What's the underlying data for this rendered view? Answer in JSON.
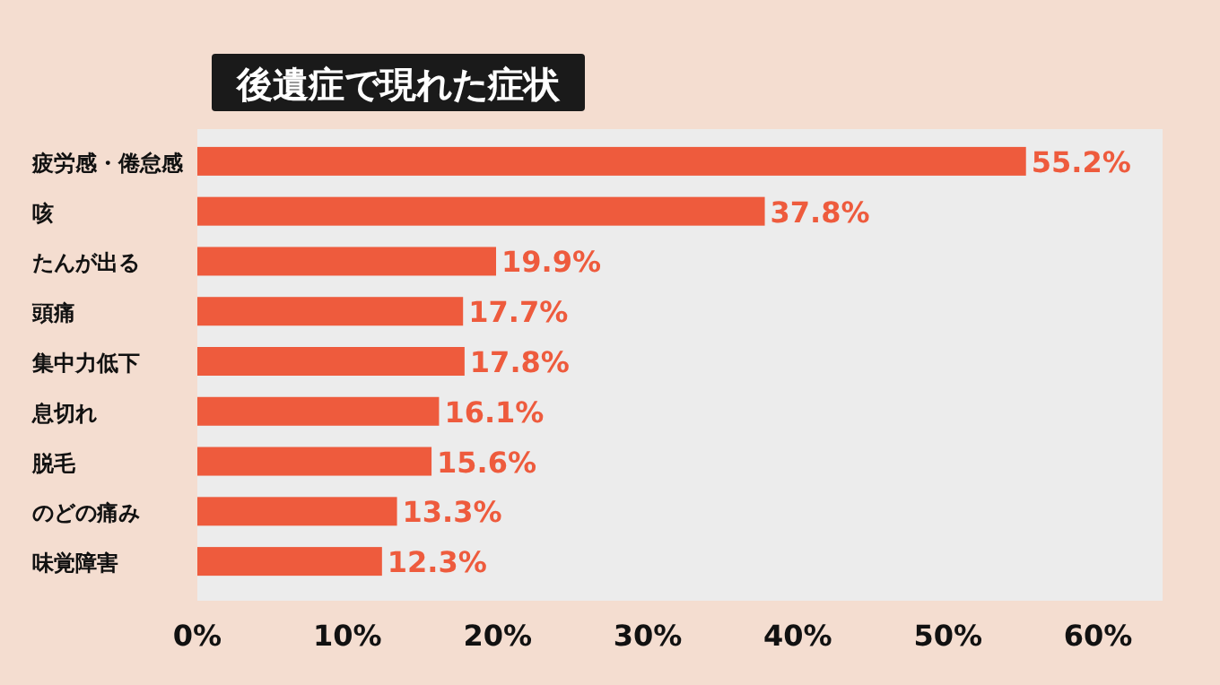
{
  "chart_data": {
    "type": "bar",
    "orientation": "horizontal",
    "title": "後遺症で現れた症状",
    "categories": [
      "疲労感・倦怠感",
      "咳",
      "たんが出る",
      "頭痛",
      "集中力低下",
      "息切れ",
      "脱毛",
      "のどの痛み",
      "味覚障害"
    ],
    "values": [
      55.2,
      37.8,
      19.9,
      17.7,
      17.8,
      16.1,
      15.6,
      13.3,
      12.3
    ],
    "value_labels": [
      "55.2%",
      "37.8%",
      "19.9%",
      "17.7%",
      "17.8%",
      "16.1%",
      "15.6%",
      "13.3%",
      "12.3%"
    ],
    "color": "#ee5b3d",
    "xlim": [
      0,
      64.3
    ],
    "xticks": [
      {
        "value": 0,
        "label": "0%"
      },
      {
        "value": 10,
        "label": "10%"
      },
      {
        "value": 20,
        "label": "20%"
      },
      {
        "value": 30,
        "label": "30%"
      },
      {
        "value": 40,
        "label": "40%"
      },
      {
        "value": 50,
        "label": "50%"
      },
      {
        "value": 60,
        "label": "60%"
      }
    ]
  }
}
